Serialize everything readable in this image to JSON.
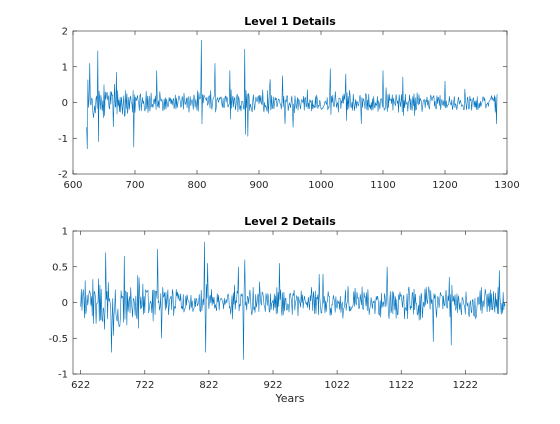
{
  "colors": {
    "series": "#0072bd",
    "axis": "#262626",
    "background": "#ffffff"
  },
  "chart_data": [
    {
      "type": "line",
      "title": "Level 1 Details",
      "xlabel": "",
      "ylabel": "",
      "xlim": [
        600,
        1300
      ],
      "ylim": [
        -2,
        2
      ],
      "xticks": [
        600,
        700,
        800,
        900,
        1000,
        1100,
        1200,
        1300
      ],
      "xtick_labels": [
        "600",
        "700",
        "800",
        "900",
        "1000",
        "1100",
        "1200",
        "1300"
      ],
      "yticks": [
        -2,
        -1,
        0,
        1,
        2
      ],
      "ytick_labels": [
        "-2",
        "-1",
        "0",
        "1",
        "2"
      ],
      "grid": false,
      "series": [
        {
          "x_start": 622,
          "x_end": 1284,
          "envelope_x": [
            622,
            650,
            700,
            750,
            800,
            850,
            900,
            950,
            1000,
            1050,
            1100,
            1150,
            1200,
            1250,
            1284
          ],
          "envelope_amp": [
            0.65,
            0.55,
            0.45,
            0.32,
            0.28,
            0.3,
            0.35,
            0.28,
            0.25,
            0.32,
            0.32,
            0.3,
            0.26,
            0.25,
            0.25
          ],
          "spikes": [
            [
              623,
              -1.3
            ],
            [
              627,
              1.1
            ],
            [
              640,
              1.45
            ],
            [
              641,
              -1.1
            ],
            [
              670,
              0.85
            ],
            [
              698,
              -1.25
            ],
            [
              735,
              0.9
            ],
            [
              807,
              1.75
            ],
            [
              808,
              -0.6
            ],
            [
              829,
              1.1
            ],
            [
              853,
              0.9
            ],
            [
              877,
              1.5
            ],
            [
              878,
              -0.9
            ],
            [
              882,
              -0.95
            ],
            [
              918,
              0.65
            ],
            [
              938,
              0.75
            ],
            [
              942,
              -0.6
            ],
            [
              955,
              -0.7
            ],
            [
              1015,
              0.95
            ],
            [
              1040,
              0.8
            ],
            [
              1065,
              -0.6
            ],
            [
              1100,
              0.9
            ],
            [
              1200,
              0.6
            ],
            [
              1283,
              -0.6
            ]
          ]
        }
      ]
    },
    {
      "type": "line",
      "title": "Level 2 Details",
      "xlabel": "Years",
      "ylabel": "",
      "xlim": [
        610,
        1287
      ],
      "ylim": [
        -1,
        1
      ],
      "xticks": [
        622,
        722,
        822,
        922,
        1022,
        1122,
        1222
      ],
      "xtick_labels": [
        "622",
        "722",
        "822",
        "922",
        "1022",
        "1122",
        "1222"
      ],
      "yticks": [
        -1,
        -0.5,
        0,
        0.5,
        1
      ],
      "ytick_labels": [
        "-1",
        "-0.5",
        "0",
        "0.5",
        "1"
      ],
      "grid": false,
      "series": [
        {
          "x_start": 622,
          "x_end": 1284,
          "envelope_x": [
            622,
            650,
            700,
            750,
            800,
            850,
            900,
            950,
            1000,
            1050,
            1100,
            1150,
            1200,
            1250,
            1284
          ],
          "envelope_amp": [
            0.35,
            0.45,
            0.42,
            0.25,
            0.2,
            0.18,
            0.22,
            0.22,
            0.2,
            0.22,
            0.26,
            0.26,
            0.24,
            0.24,
            0.2
          ],
          "spikes": [
            [
              661,
              0.7
            ],
            [
              670,
              -0.7
            ],
            [
              690,
              0.65
            ],
            [
              742,
              0.75
            ],
            [
              748,
              -0.5
            ],
            [
              815,
              0.85
            ],
            [
              817,
              -0.7
            ],
            [
              820,
              0.55
            ],
            [
              868,
              0.5
            ],
            [
              876,
              -0.8
            ],
            [
              878,
              0.6
            ],
            [
              932,
              0.55
            ],
            [
              1000,
              0.4
            ],
            [
              1100,
              0.5
            ],
            [
              1172,
              -0.55
            ],
            [
              1200,
              -0.6
            ],
            [
              1275,
              0.45
            ]
          ]
        }
      ]
    }
  ]
}
